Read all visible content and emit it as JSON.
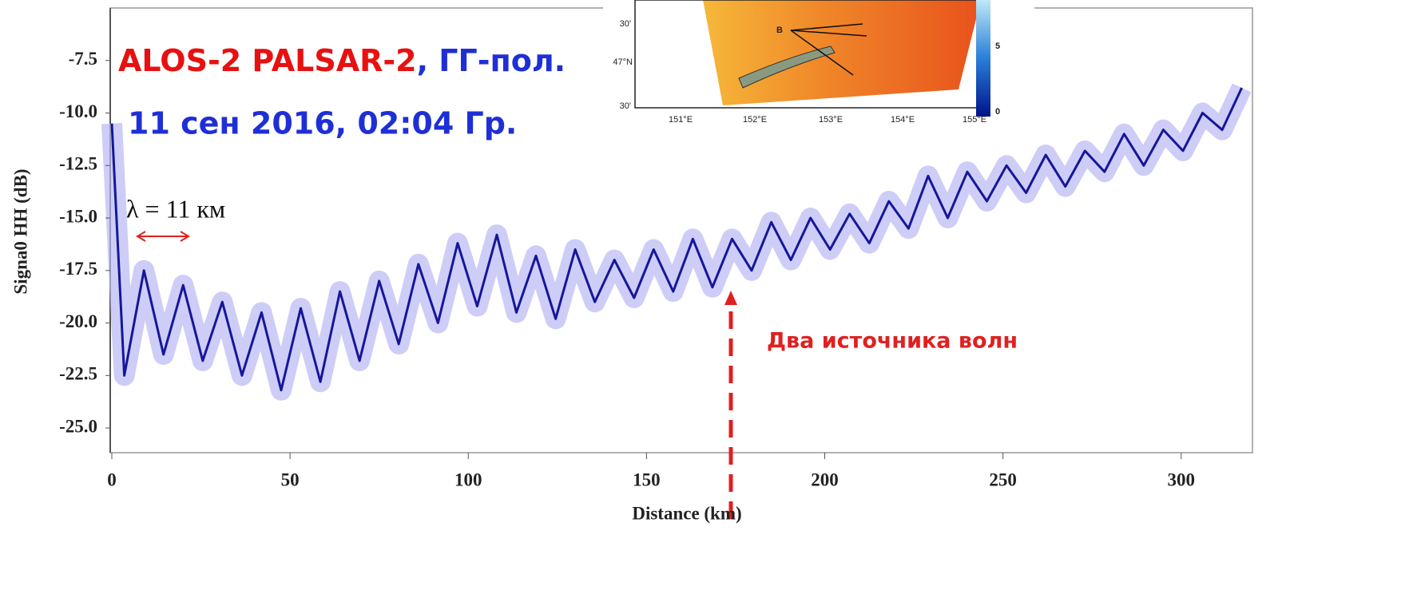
{
  "chart_data": {
    "type": "line",
    "title_parts": [
      "ALOS-2 PALSAR-2",
      ", ГГ-пол.",
      "11 сен 2016, 02:04 Гр."
    ],
    "annotations": [
      "λ = 11 км",
      "Два источника волн"
    ],
    "xlabel": "Distance (km)",
    "ylabel": "Signa0 HH (dB)",
    "x": [
      0,
      3.5,
      9,
      14.5,
      20,
      25.5,
      31,
      36.5,
      42,
      47.5,
      53,
      58.5,
      64,
      69.5,
      75,
      80.5,
      86,
      91.5,
      97,
      102.5,
      108,
      113.5,
      119,
      124.5,
      130,
      135.5,
      141,
      146.5,
      152,
      157.5,
      163,
      168.5,
      174,
      179.5,
      185,
      190.5,
      196,
      201.5,
      207,
      212.5,
      218,
      223.5,
      229,
      234.5,
      240,
      245.5,
      251,
      256.5,
      262,
      267.5,
      273,
      278.5,
      284,
      289.5,
      295,
      300.5,
      306,
      311.5,
      317
    ],
    "values": [
      -10.5,
      -22.5,
      -17.5,
      -21.5,
      -18.2,
      -21.8,
      -19.0,
      -22.5,
      -19.5,
      -23.2,
      -19.3,
      -22.8,
      -18.5,
      -21.8,
      -18.0,
      -21.0,
      -17.2,
      -20.0,
      -16.2,
      -19.2,
      -15.8,
      -19.5,
      -16.8,
      -19.8,
      -16.5,
      -19.0,
      -17.0,
      -18.8,
      -16.5,
      -18.5,
      -16.0,
      -18.3,
      -16.0,
      -17.5,
      -15.2,
      -17.0,
      -15.0,
      -16.5,
      -14.8,
      -16.2,
      -14.2,
      -15.5,
      -13.0,
      -15.0,
      -12.8,
      -14.2,
      -12.5,
      -13.8,
      -12.0,
      -13.5,
      -11.8,
      -12.8,
      -11.0,
      -12.5,
      -10.8,
      -11.8,
      -10.0,
      -10.8,
      -8.8
    ],
    "color": "#16169a",
    "xlim": [
      0,
      320
    ],
    "ylim": [
      -26.1,
      -5.0
    ],
    "xticks": [
      0,
      50,
      100,
      150,
      200,
      250,
      300
    ],
    "yticks": [
      -7.5,
      {
        "value": -10,
        "label": "-10.0"
      },
      -12.5,
      {
        "value": -15,
        "label": "-15.0"
      },
      -17.5,
      {
        "value": -20,
        "label": "-20.0"
      },
      -22.5,
      {
        "value": -25,
        "label": "-25.0"
      }
    ]
  },
  "inset": {
    "point_label": "B",
    "lat_labels": [
      "30'",
      "47°N",
      "30'"
    ],
    "lon_labels": [
      "151°E",
      "152°E",
      "153°E",
      "154°E",
      "155°E"
    ],
    "colorbar_labels": [
      "5",
      "0"
    ]
  }
}
